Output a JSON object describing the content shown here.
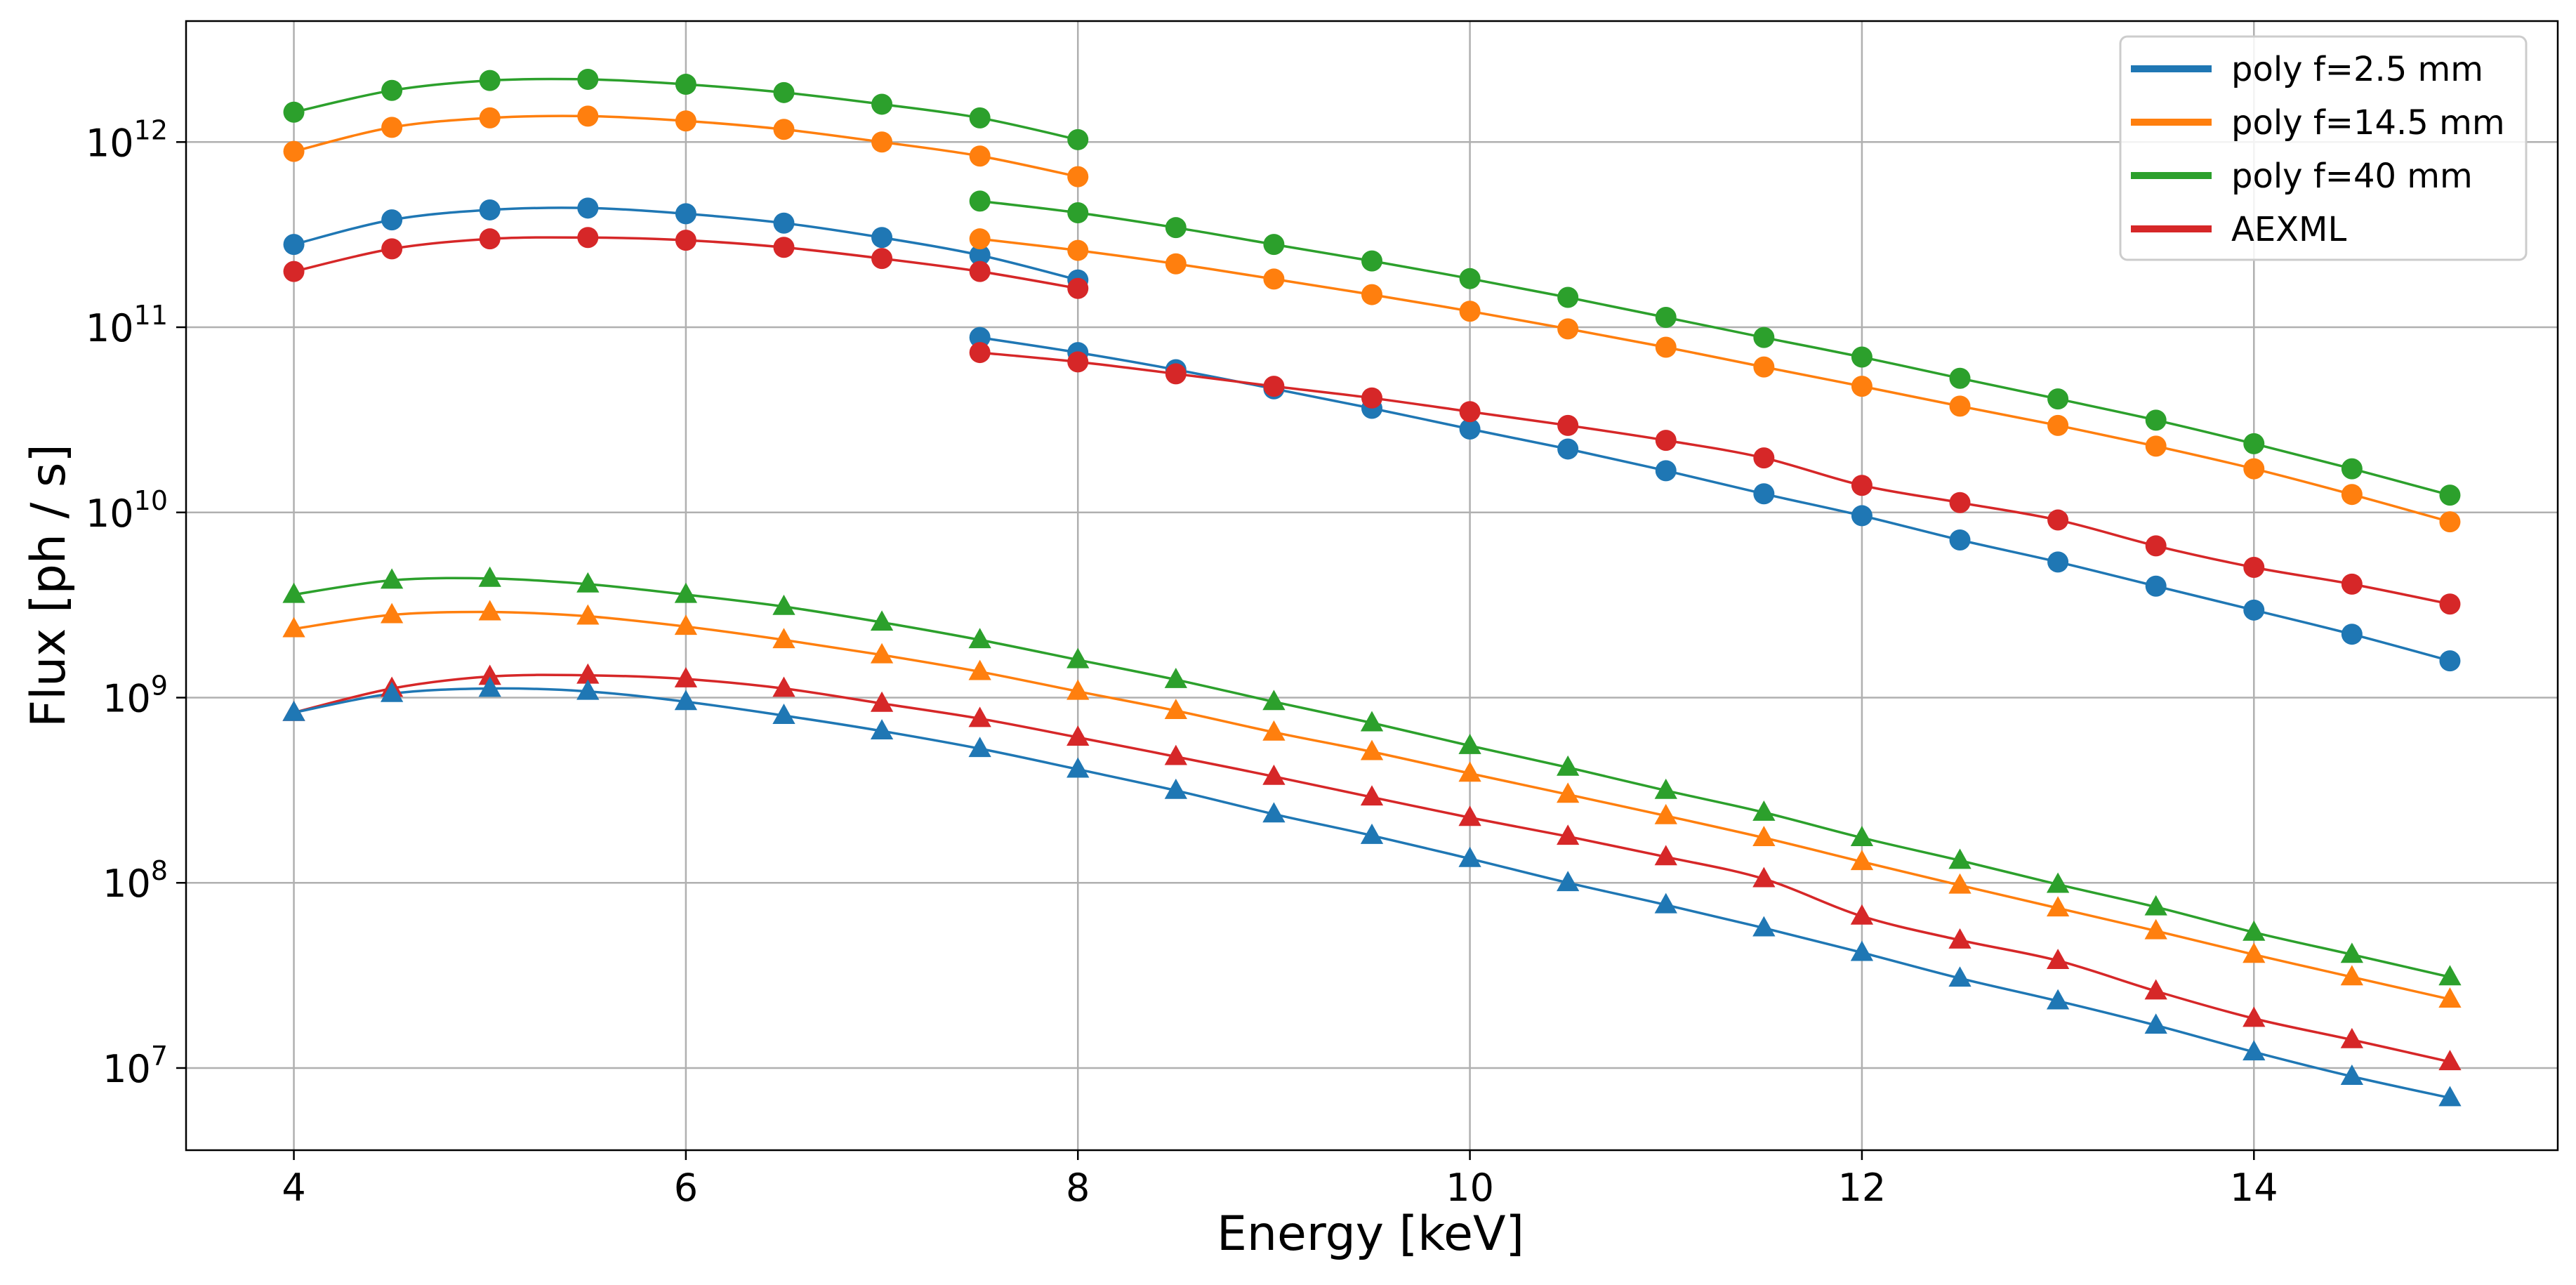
{
  "chart_data": {
    "type": "line",
    "title": "",
    "xlabel": "Energy [keV]",
    "ylabel": "Flux [ph / s]",
    "xlim": [
      3.45,
      15.55
    ],
    "ylim": [
      3600000.0,
      4500000000000.0
    ],
    "yscale": "log",
    "grid": true,
    "legend_position": "top-right",
    "x_ticks": [
      4,
      6,
      8,
      10,
      12,
      14
    ],
    "x_tick_labels": [
      "4",
      "6",
      "8",
      "10",
      "12",
      "14"
    ],
    "y_ticks": [
      10000000.0,
      100000000.0,
      1000000000.0,
      10000000000.0,
      100000000000.0,
      1000000000000.0
    ],
    "y_tick_base": "10",
    "y_tick_exponents": [
      "7",
      "8",
      "9",
      "10",
      "11",
      "12"
    ],
    "legend": [
      {
        "label": "poly f=2.5 mm",
        "color": "#1f77b4"
      },
      {
        "label": "poly f=14.5 mm",
        "color": "#ff7f0e"
      },
      {
        "label": "poly f=40 mm",
        "color": "#2ca02c"
      },
      {
        "label": "AEXML",
        "color": "#d62728"
      }
    ],
    "series": [
      {
        "name": "poly f=40 mm, circle, segment 1",
        "color": "#2ca02c",
        "marker": "circle",
        "x": [
          4,
          4.5,
          5,
          5.5,
          6,
          6.5,
          7,
          7.5,
          8
        ],
        "y": [
          1450000000000.0,
          1900000000000.0,
          2150000000000.0,
          2180000000000.0,
          2050000000000.0,
          1850000000000.0,
          1600000000000.0,
          1350000000000.0,
          1030000000000.0
        ]
      },
      {
        "name": "poly f=14.5 mm, circle, segment 1",
        "color": "#ff7f0e",
        "marker": "circle",
        "x": [
          4,
          4.5,
          5,
          5.5,
          6,
          6.5,
          7,
          7.5,
          8
        ],
        "y": [
          890000000000.0,
          1200000000000.0,
          1350000000000.0,
          1380000000000.0,
          1300000000000.0,
          1170000000000.0,
          1000000000000.0,
          840000000000.0,
          650000000000.0
        ]
      },
      {
        "name": "poly f=2.5 mm, circle, segment 1",
        "color": "#1f77b4",
        "marker": "circle",
        "x": [
          4,
          4.5,
          5,
          5.5,
          6,
          6.5,
          7,
          7.5,
          8
        ],
        "y": [
          280000000000.0,
          380000000000.0,
          430000000000.0,
          440000000000.0,
          410000000000.0,
          365000000000.0,
          305000000000.0,
          245000000000.0,
          180000000000.0
        ]
      },
      {
        "name": "AEXML, circle, segment 1",
        "color": "#d62728",
        "marker": "circle",
        "x": [
          4,
          4.5,
          5,
          5.5,
          6,
          6.5,
          7,
          7.5,
          8
        ],
        "y": [
          200000000000.0,
          265000000000.0,
          300000000000.0,
          305000000000.0,
          295000000000.0,
          270000000000.0,
          235000000000.0,
          200000000000.0,
          162000000000.0
        ]
      },
      {
        "name": "poly f=40 mm, circle, segment 2",
        "color": "#2ca02c",
        "marker": "circle",
        "x": [
          7.5,
          8,
          8.5,
          9,
          9.5,
          10,
          10.5,
          11,
          11.5,
          12,
          12.5,
          13,
          13.5,
          14,
          14.5,
          15
        ],
        "y": [
          480000000000.0,
          415000000000.0,
          345000000000.0,
          280000000000.0,
          228000000000.0,
          183000000000.0,
          145000000000.0,
          113000000000.0,
          88000000000.0,
          69000000000.0,
          53000000000.0,
          41000000000.0,
          31500000000.0,
          23500000000.0,
          17200000000.0,
          12400000000.0
        ]
      },
      {
        "name": "poly f=14.5 mm, circle, segment 2",
        "color": "#ff7f0e",
        "marker": "circle",
        "x": [
          7.5,
          8,
          8.5,
          9,
          9.5,
          10,
          10.5,
          11,
          11.5,
          12,
          12.5,
          13,
          13.5,
          14,
          14.5,
          15
        ],
        "y": [
          300000000000.0,
          260000000000.0,
          220000000000.0,
          182000000000.0,
          150000000000.0,
          122000000000.0,
          98000000000.0,
          78000000000.0,
          61000000000.0,
          48000000000.0,
          37500000000.0,
          29500000000.0,
          22800000000.0,
          17200000000.0,
          12500000000.0,
          8900000000.0
        ]
      },
      {
        "name": "poly f=2.5 mm, circle, segment 2",
        "color": "#1f77b4",
        "marker": "circle",
        "x": [
          7.5,
          8,
          8.5,
          9,
          9.5,
          10,
          10.5,
          11,
          11.5,
          12,
          12.5,
          13,
          13.5,
          14,
          14.5,
          15
        ],
        "y": [
          88000000000.0,
          73000000000.0,
          59000000000.0,
          46500000000.0,
          36500000000.0,
          28200000000.0,
          22000000000.0,
          16800000000.0,
          12600000000.0,
          9600000000.0,
          7100000000.0,
          5400000000.0,
          4000000000.0,
          2970000000.0,
          2200000000.0,
          1580000000.0
        ]
      },
      {
        "name": "AEXML, circle, segment 2",
        "color": "#d62728",
        "marker": "circle",
        "x": [
          7.5,
          8,
          8.5,
          9,
          9.5,
          10,
          10.5,
          11,
          11.5,
          12,
          12.5,
          13,
          13.5,
          14,
          14.5,
          15
        ],
        "y": [
          73000000000.0,
          65000000000.0,
          56000000000.0,
          48000000000.0,
          41500000000.0,
          35000000000.0,
          29500000000.0,
          24500000000.0,
          19700000000.0,
          14000000000.0,
          11300000000.0,
          9100000000.0,
          6600000000.0,
          5050000000.0,
          4100000000.0,
          3200000000.0
        ]
      },
      {
        "name": "poly f=40 mm, triangle",
        "color": "#2ca02c",
        "marker": "triangle",
        "x": [
          4,
          4.5,
          5,
          5.5,
          6,
          6.5,
          7,
          7.5,
          8,
          8.5,
          9,
          9.5,
          10,
          10.5,
          11,
          11.5,
          12,
          12.5,
          13,
          13.5,
          14,
          14.5,
          15
        ],
        "y": [
          3600000000.0,
          4300000000.0,
          4400000000.0,
          4100000000.0,
          3600000000.0,
          3100000000.0,
          2550000000.0,
          2050000000.0,
          1600000000.0,
          1250000000.0,
          950000000.0,
          730000000.0,
          550000000.0,
          420000000.0,
          315000000.0,
          240000000.0,
          175000000.0,
          132000000.0,
          98000000.0,
          74000000.0,
          54000000.0,
          41000000.0,
          31000000.0
        ]
      },
      {
        "name": "poly f=14.5 mm, triangle",
        "color": "#ff7f0e",
        "marker": "triangle",
        "x": [
          4,
          4.5,
          5,
          5.5,
          6,
          6.5,
          7,
          7.5,
          8,
          8.5,
          9,
          9.5,
          10,
          10.5,
          11,
          11.5,
          12,
          12.5,
          13,
          13.5,
          14,
          14.5,
          15
        ],
        "y": [
          2350000000.0,
          2800000000.0,
          2900000000.0,
          2750000000.0,
          2420000000.0,
          2050000000.0,
          1700000000.0,
          1380000000.0,
          1080000000.0,
          850000000.0,
          650000000.0,
          510000000.0,
          390000000.0,
          300000000.0,
          230000000.0,
          175000000.0,
          130000000.0,
          97000000.0,
          73000000.0,
          55000000.0,
          41000000.0,
          31000000.0,
          23500000.0
        ]
      },
      {
        "name": "AEXML, triangle",
        "color": "#d62728",
        "marker": "triangle",
        "x": [
          4,
          4.5,
          5,
          5.5,
          6,
          6.5,
          7,
          7.5,
          8,
          8.5,
          9,
          9.5,
          10,
          10.5,
          11,
          11.5,
          12,
          12.5,
          13,
          13.5,
          14,
          14.5,
          15
        ],
        "y": [
          830000000.0,
          1120000000.0,
          1300000000.0,
          1320000000.0,
          1260000000.0,
          1120000000.0,
          930000000.0,
          770000000.0,
          610000000.0,
          480000000.0,
          375000000.0,
          290000000.0,
          225000000.0,
          178000000.0,
          138000000.0,
          105000000.0,
          66000000.0,
          49000000.0,
          38000000.0,
          26000000.0,
          18500000.0,
          14200000.0,
          10800000.0
        ]
      },
      {
        "name": "poly f=2.5 mm, triangle",
        "color": "#1f77b4",
        "marker": "triangle",
        "x": [
          4,
          4.5,
          5,
          5.5,
          6,
          6.5,
          7,
          7.5,
          8,
          8.5,
          9,
          9.5,
          10,
          10.5,
          11,
          11.5,
          12,
          12.5,
          13,
          13.5,
          14,
          14.5,
          15
        ],
        "y": [
          830000000.0,
          1050000000.0,
          1120000000.0,
          1080000000.0,
          950000000.0,
          800000000.0,
          660000000.0,
          530000000.0,
          410000000.0,
          315000000.0,
          235000000.0,
          180000000.0,
          135000000.0,
          100000000.0,
          76000000.0,
          57000000.0,
          42000000.0,
          30500000.0,
          23000000.0,
          17000000.0,
          12200000.0,
          9000000.0,
          6900000.0
        ]
      }
    ]
  }
}
